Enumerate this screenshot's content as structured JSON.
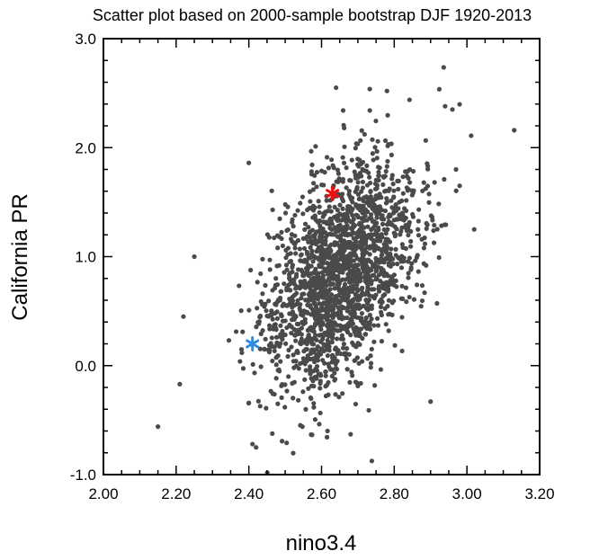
{
  "chart_data": {
    "type": "scatter",
    "title": "Scatter plot based on 2000-sample bootstrap DJF 1920-2013",
    "xlabel": "nino3.4",
    "ylabel": "California PR",
    "xlim": [
      2.0,
      3.2
    ],
    "ylim": [
      -1.0,
      3.0
    ],
    "x_ticks": [
      "2.00",
      "2.20",
      "2.40",
      "2.60",
      "2.80",
      "3.00",
      "3.20"
    ],
    "y_ticks": [
      "-1.0",
      "0.0",
      "1.0",
      "2.0",
      "3.0"
    ],
    "grid": false,
    "point_color": "#4a4a4a",
    "markers": [
      {
        "label": "",
        "x": 2.63,
        "y": 1.58,
        "color": "#ee1111",
        "symbol": "asterisk"
      },
      {
        "label": "",
        "x": 2.41,
        "y": 0.2,
        "color": "#2e8be6",
        "symbol": "asterisk"
      }
    ],
    "cloud": {
      "n": 2000,
      "x_mean": 2.65,
      "y_mean": 0.85,
      "x_sd": 0.1,
      "y_sd": 0.52,
      "corr": 0.45
    },
    "notable_points": [
      {
        "x": 3.13,
        "y": 2.16
      },
      {
        "x": 2.15,
        "y": -0.56
      },
      {
        "x": 2.21,
        "y": -0.17
      },
      {
        "x": 2.22,
        "y": 0.45
      },
      {
        "x": 2.25,
        "y": 1.0
      },
      {
        "x": 2.64,
        "y": 2.55
      },
      {
        "x": 2.78,
        "y": 2.52
      },
      {
        "x": 2.94,
        "y": 2.38
      },
      {
        "x": 2.96,
        "y": 2.35
      },
      {
        "x": 2.41,
        "y": -0.72
      },
      {
        "x": 2.42,
        "y": -0.75
      },
      {
        "x": 2.68,
        "y": -0.63
      },
      {
        "x": 3.02,
        "y": 1.25
      },
      {
        "x": 2.4,
        "y": 1.86
      },
      {
        "x": 2.73,
        "y": -0.41
      },
      {
        "x": 2.9,
        "y": -0.33
      },
      {
        "x": 2.97,
        "y": 1.8
      },
      {
        "x": 2.98,
        "y": 1.65
      }
    ]
  }
}
